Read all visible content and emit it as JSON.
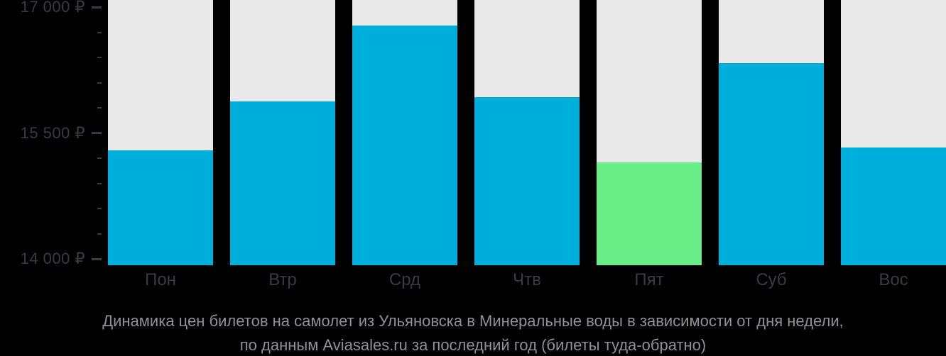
{
  "chart_data": {
    "type": "bar",
    "categories": [
      "Пон",
      "Втр",
      "Срд",
      "Чтв",
      "Пят",
      "Суб",
      "Вос"
    ],
    "values": [
      15290,
      15880,
      16780,
      15930,
      15150,
      16330,
      15330
    ],
    "highlight_index": 4,
    "caption_line1": "Динамика цен билетов на самолет из Ульяновска в Минеральные воды в зависимости от дня недели,",
    "caption_line2": "по данным Aviasales.ru за последний год (билеты туда-обратно)",
    "y_axis": {
      "min": 13925,
      "max": 17085,
      "major_ticks": [
        {
          "value": 17000,
          "label": "17 000 ₽"
        },
        {
          "value": 15500,
          "label": "15 500 ₽"
        },
        {
          "value": 14000,
          "label": "14 000 ₽"
        }
      ],
      "minor_ticks": [
        16700,
        16400,
        16100,
        15800,
        15200,
        14900,
        14600,
        14300
      ]
    },
    "legend": null,
    "grid": false,
    "colors": {
      "bar": "#00AEDC",
      "bar_highlight": "#69ED86",
      "column_background": "#E9E9E9",
      "page_background": "#000000",
      "axis_text": "#383C40",
      "caption_text": "#8E9296"
    }
  }
}
